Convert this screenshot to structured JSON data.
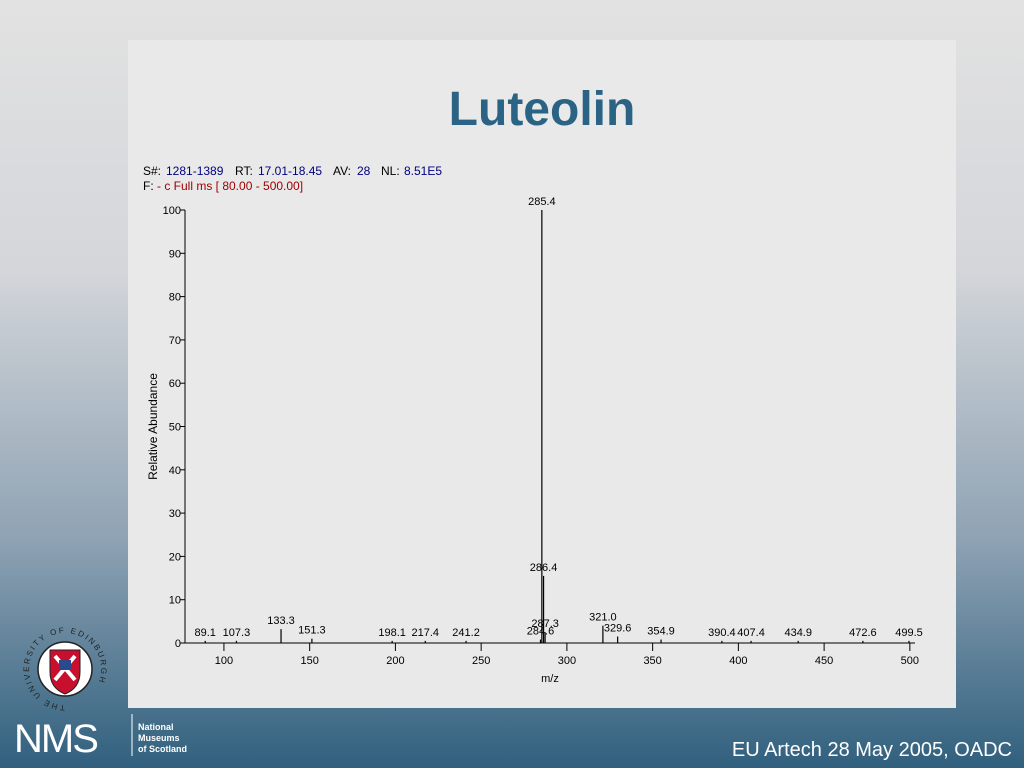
{
  "title": "Luteolin",
  "header": {
    "scan_label": "S#:",
    "scan": "1281-1389",
    "rt_label": "RT:",
    "rt": "17.01-18.45",
    "av_label": "AV:",
    "av": "28",
    "nl_label": "NL:",
    "nl": "8.51E5",
    "filter_label": "F:",
    "filter": "- c Full ms [ 80.00 - 500.00]"
  },
  "chart_data": {
    "type": "stem",
    "x_label": "m/z",
    "y_label": "Relative Abundance",
    "color": "#000000",
    "x": [
      89.1,
      107.3,
      133.3,
      151.3,
      198.1,
      217.4,
      241.2,
      284.6,
      285.4,
      286.4,
      287.3,
      321.0,
      329.6,
      354.9,
      390.4,
      407.4,
      434.9,
      472.6,
      499.5
    ],
    "x_labels": [
      "89.1",
      "107.3",
      "133.3",
      "151.3",
      "198.1",
      "217.4",
      "241.2",
      "284.6",
      "285.4",
      "286.4",
      "287.3",
      "321.0",
      "329.6",
      "354.9",
      "390.4",
      "407.4",
      "434.9",
      "472.6",
      "499.5"
    ],
    "values": [
      0.5,
      0.5,
      3.2,
      1,
      0.5,
      0.5,
      0.5,
      0.8,
      100,
      15.5,
      2.5,
      4,
      1.5,
      0.8,
      0.5,
      0.5,
      0.5,
      0.5,
      0.5
    ],
    "xlim": [
      77.3,
      503
    ],
    "ylim": [
      0,
      100
    ],
    "xticks": [
      100,
      150,
      200,
      250,
      300,
      350,
      400,
      450,
      500
    ],
    "yticks": [
      0,
      10,
      20,
      30,
      40,
      50,
      60,
      70,
      80,
      90,
      100
    ]
  },
  "footer": {
    "logo_ring": "THE UNIVERSITY OF EDINBURGH",
    "nms": "NMS",
    "museum_lines": [
      "National",
      "Museums",
      "of Scotland"
    ],
    "event": "EU Artech 28 May 2005, OADC"
  }
}
